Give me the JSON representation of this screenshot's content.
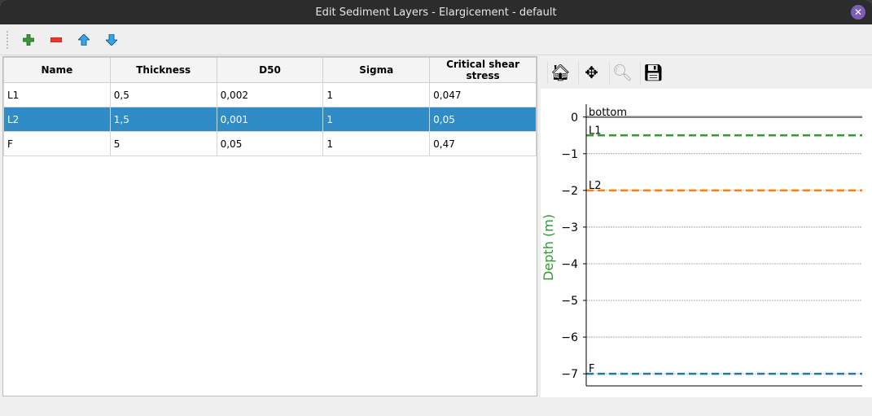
{
  "window": {
    "title": "Edit Sediment Layers - Elargicement - default"
  },
  "toolbar": {
    "add": "add-icon",
    "remove": "remove-icon",
    "up": "move-up-icon",
    "down": "move-down-icon"
  },
  "table": {
    "columns": [
      "Name",
      "Thickness",
      "D50",
      "Sigma",
      "Critical shear stress"
    ],
    "rows": [
      [
        "L1",
        "0,5",
        "0,002",
        "1",
        "0,047"
      ],
      [
        "L2",
        "1,5",
        "0,001",
        "1",
        "0,05"
      ],
      [
        "F",
        "5",
        "0,05",
        "1",
        "0,47"
      ]
    ],
    "selected_row": 1,
    "selection_color": "#308cc6"
  },
  "plot_toolbar": [
    "home-icon",
    "pan-icon",
    "zoom-icon",
    "save-icon"
  ],
  "chart_data": {
    "type": "line",
    "ylabel": "Depth (m)",
    "ylim": [
      -7.33,
      0.35
    ],
    "yticks": [
      "0",
      "−1",
      "−2",
      "−3",
      "−4",
      "−5",
      "−6",
      "−7"
    ],
    "grid": "horizontal dotted",
    "series": [
      {
        "name": "bottom",
        "depth": 0,
        "color": "#808080",
        "style": "solid"
      },
      {
        "name": "L1",
        "depth": -0.5,
        "color": "#2ca02c",
        "style": "dashed"
      },
      {
        "name": "L2",
        "depth": -2,
        "color": "#ff7f0e",
        "style": "dashed"
      },
      {
        "name": "F",
        "depth": -7,
        "color": "#1f77b4",
        "style": "dashed"
      }
    ]
  }
}
